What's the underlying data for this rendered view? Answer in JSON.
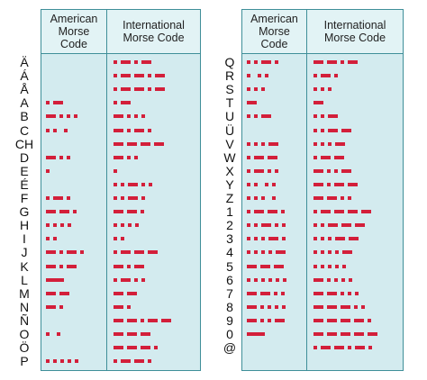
{
  "tables": [
    {
      "headers": [
        "American Morse Code",
        "International Morse Code"
      ],
      "rows": [
        {
          "char": "Ä",
          "american": null,
          "international": ".-.-"
        },
        {
          "char": "Á",
          "american": null,
          "international": ".--.-"
        },
        {
          "char": "Å",
          "american": null,
          "international": ".--.-"
        },
        {
          "char": "A",
          "american": ".-",
          "international": ".-"
        },
        {
          "char": "B",
          "american": "-...",
          "international": "-..."
        },
        {
          "char": "C",
          "american": ".. .",
          "international": "-.-."
        },
        {
          "char": "CH",
          "american": null,
          "international": "----"
        },
        {
          "char": "D",
          "american": "-..",
          "international": "-.."
        },
        {
          "char": "E",
          "american": ".",
          "international": "."
        },
        {
          "char": "É",
          "american": null,
          "international": "..-.."
        },
        {
          "char": "F",
          "american": ".-.",
          "international": "..-."
        },
        {
          "char": "G",
          "american": "--.",
          "international": "--."
        },
        {
          "char": "H",
          "american": "....",
          "international": "...."
        },
        {
          "char": "I",
          "american": "..",
          "international": ".."
        },
        {
          "char": "J",
          "american": "-.-.",
          "international": ".---"
        },
        {
          "char": "K",
          "american": "-.-",
          "international": "-.-"
        },
        {
          "char": "L",
          "american": "_",
          "international": ".-.."
        },
        {
          "char": "M",
          "american": "--",
          "international": "--"
        },
        {
          "char": "N",
          "american": "-.",
          "international": "-."
        },
        {
          "char": "Ñ",
          "american": null,
          "international": "--.--"
        },
        {
          "char": "O",
          "american": ". .",
          "international": "---"
        },
        {
          "char": "Ö",
          "american": null,
          "international": "---."
        },
        {
          "char": "P",
          "american": ".....",
          "international": ".--."
        }
      ]
    },
    {
      "headers": [
        "American Morse Code",
        "International Morse Code"
      ],
      "rows": [
        {
          "char": "Q",
          "american": "..-.",
          "international": "--.-"
        },
        {
          "char": "R",
          "american": ". ..",
          "international": ".-."
        },
        {
          "char": "S",
          "american": "...",
          "international": "..."
        },
        {
          "char": "T",
          "american": "-",
          "international": "-"
        },
        {
          "char": "U",
          "american": "..-",
          "international": "..-"
        },
        {
          "char": "Ü",
          "american": null,
          "international": "..--"
        },
        {
          "char": "V",
          "american": "...-",
          "international": "...-"
        },
        {
          "char": "W",
          "american": ".--",
          "international": ".--"
        },
        {
          "char": "X",
          "american": ".-..",
          "international": "-..-"
        },
        {
          "char": "Y",
          "american": ".. ..",
          "international": "-.--"
        },
        {
          "char": "Z",
          "american": "... .",
          "international": "--.."
        },
        {
          "char": "1",
          "american": ".--.",
          "international": ".----"
        },
        {
          "char": "2",
          "american": "..-..",
          "international": "..---"
        },
        {
          "char": "3",
          "american": "...-.",
          "international": "...--"
        },
        {
          "char": "4",
          "american": "....-",
          "international": "....-"
        },
        {
          "char": "5",
          "american": "---",
          "international": "....."
        },
        {
          "char": "6",
          "american": "......",
          "international": "-...."
        },
        {
          "char": "7",
          "american": "--..",
          "international": "--..."
        },
        {
          "char": "8",
          "american": "-....",
          "international": "---.."
        },
        {
          "char": "9",
          "american": "-..-",
          "international": "----."
        },
        {
          "char": "0",
          "american": "_",
          "international": "-----"
        },
        {
          "char": "@",
          "american": null,
          "international": ".--.-."
        }
      ]
    }
  ]
}
